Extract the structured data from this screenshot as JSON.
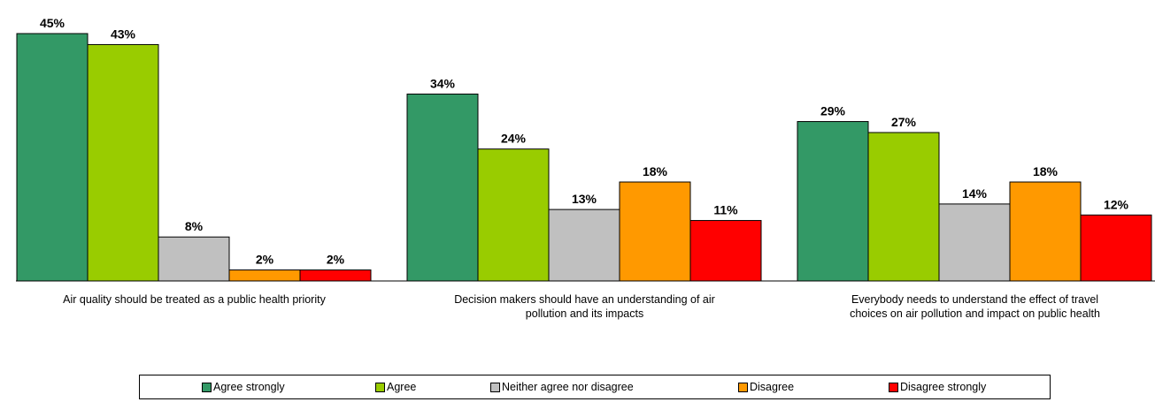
{
  "chart_data": {
    "type": "bar",
    "categories": [
      [
        "Air quality should be treated as a public health priority"
      ],
      [
        "Decision makers should have an understanding of air",
        "pollution and its impacts"
      ],
      [
        "Everybody needs to understand the effect of travel",
        "choices on air pollution and impact on public health"
      ]
    ],
    "series": [
      {
        "name": "Agree strongly",
        "color": "#339966",
        "values": [
          45,
          34,
          29
        ],
        "labels": [
          "45%",
          "34%",
          "29%"
        ]
      },
      {
        "name": "Agree",
        "color": "#99cc00",
        "values": [
          43,
          24,
          27
        ],
        "labels": [
          "43%",
          "24%",
          "27%"
        ]
      },
      {
        "name": "Neither agree nor disagree",
        "color": "#c0c0c0",
        "values": [
          8,
          13,
          14
        ],
        "labels": [
          "8%",
          "13%",
          "14%"
        ]
      },
      {
        "name": "Disagree",
        "color": "#ff9900",
        "values": [
          2,
          18,
          18
        ],
        "labels": [
          "2%",
          "18%",
          "18%"
        ]
      },
      {
        "name": "Disagree strongly",
        "color": "#ff0000",
        "values": [
          2,
          11,
          12
        ],
        "labels": [
          "2%",
          "11%",
          "12%"
        ]
      }
    ],
    "ylim": [
      0,
      50
    ],
    "grid": false,
    "legend_position": "bottom"
  }
}
